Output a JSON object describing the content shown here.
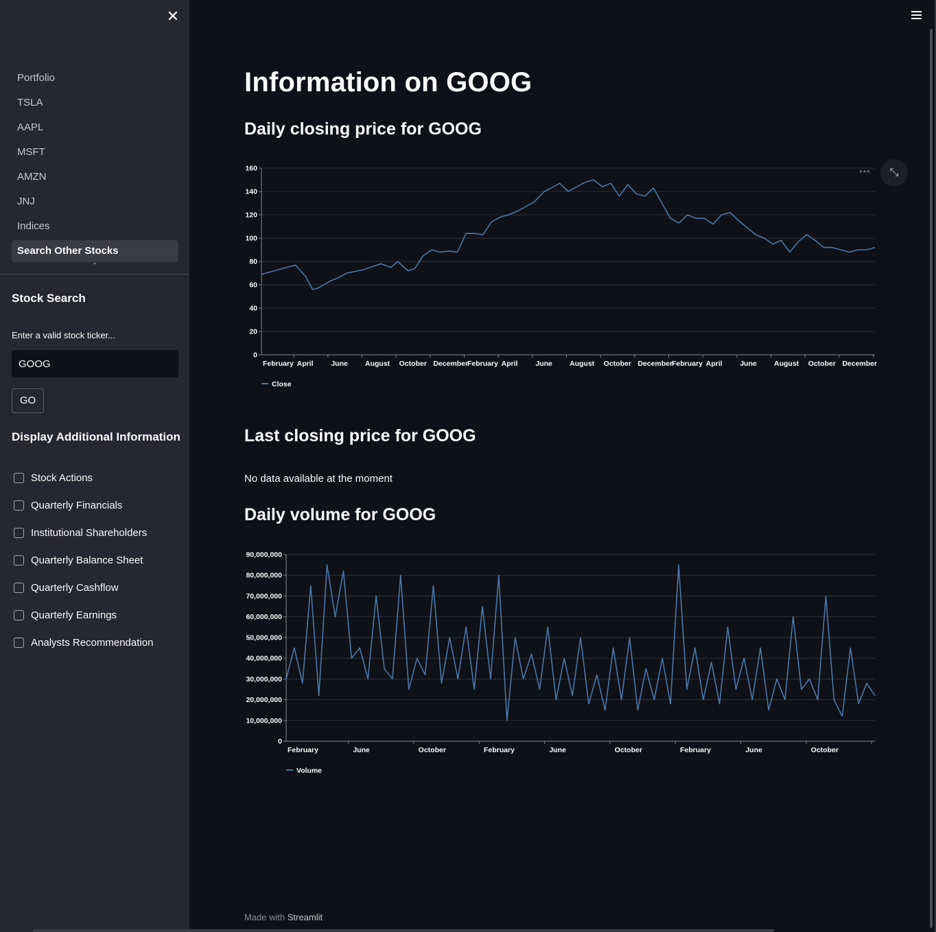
{
  "sidebar": {
    "nav_items": [
      "Portfolio",
      "TSLA",
      "AAPL",
      "MSFT",
      "AMZN",
      "JNJ",
      "Indices",
      "Search Other Stocks"
    ],
    "active_index": 7,
    "search_heading": "Stock Search",
    "input_label": "Enter a valid stock ticker...",
    "ticker_value": "GOOG",
    "go_label": "GO",
    "additional_heading": "Display Additional Information",
    "checkboxes": [
      {
        "label": "Stock Actions",
        "checked": false
      },
      {
        "label": "Quarterly Financials",
        "checked": false
      },
      {
        "label": "Institutional Shareholders",
        "checked": false
      },
      {
        "label": "Quarterly Balance Sheet",
        "checked": false
      },
      {
        "label": "Quarterly Cashflow",
        "checked": false
      },
      {
        "label": "Quarterly Earnings",
        "checked": false
      },
      {
        "label": "Analysts Recommendation",
        "checked": false
      }
    ]
  },
  "main": {
    "title": "Information on GOOG",
    "closing_heading": "Daily closing price for GOOG",
    "last_heading": "Last closing price for GOOG",
    "no_data": "No data available at the moment",
    "volume_heading": "Daily volume for GOOG",
    "footer_prefix": "Made with",
    "footer_brand": "Streamlit"
  },
  "colors": {
    "accent": "#4c78a8",
    "background": "#0e1117",
    "sidebar": "#262730"
  },
  "chart_data": [
    {
      "type": "line",
      "series": [
        {
          "name": "Close"
        }
      ],
      "ylim": [
        0,
        160
      ],
      "y_ticks": [
        0,
        20,
        40,
        60,
        80,
        100,
        120,
        140,
        160
      ],
      "x_tick_labels": [
        "February",
        "April",
        "June",
        "August",
        "October",
        "December",
        "February",
        "April",
        "June",
        "August",
        "October",
        "December",
        "February",
        "April",
        "June",
        "August",
        "October",
        "December"
      ],
      "x_index_range": [
        0,
        36
      ],
      "x_index": [
        0,
        1,
        2,
        2.6,
        3,
        3.3,
        4,
        4.5,
        5,
        6,
        7,
        7.6,
        8,
        8.6,
        9,
        9.5,
        10,
        10.5,
        11,
        11.5,
        12,
        12.5,
        13,
        13.5,
        14,
        14.5,
        15,
        15.5,
        16,
        16.6,
        17,
        17.5,
        18,
        19,
        19.5,
        20,
        20.5,
        21,
        21.5,
        22,
        22.5,
        23,
        23.5,
        24,
        24.5,
        25,
        25.5,
        26,
        26.5,
        27,
        27.5,
        28,
        28.5,
        29,
        29.5,
        30,
        30.5,
        31,
        31.5,
        32,
        32.5,
        33,
        33.5,
        34,
        34.5,
        35,
        35.5,
        36
      ],
      "values": [
        69,
        73,
        77,
        67,
        56,
        57,
        63,
        66,
        70,
        73,
        78,
        75,
        80,
        72,
        74,
        85,
        90,
        88,
        89,
        88,
        104,
        104,
        103,
        114,
        118,
        120,
        123,
        127,
        131,
        140,
        143,
        147,
        140,
        148,
        150,
        144,
        147,
        136,
        146,
        138,
        136,
        143,
        130,
        117,
        113,
        120,
        117,
        117,
        112,
        120,
        122,
        115,
        109,
        103,
        100,
        95,
        98,
        88,
        97,
        103,
        98,
        92,
        92,
        90,
        88,
        90,
        90,
        92
      ]
    },
    {
      "type": "line",
      "series": [
        {
          "name": "Volume"
        }
      ],
      "ylim": [
        0,
        90000000
      ],
      "y_ticks": [
        0,
        10000000,
        20000000,
        30000000,
        40000000,
        50000000,
        60000000,
        70000000,
        80000000,
        90000000
      ],
      "y_tick_labels": [
        "0",
        "10,000,000",
        "20,000,000",
        "30,000,000",
        "40,000,000",
        "50,000,000",
        "60,000,000",
        "70,000,000",
        "80,000,000",
        "90,000,000"
      ],
      "x_tick_labels": [
        "February",
        "June",
        "October",
        "February",
        "June",
        "October",
        "February",
        "June",
        "October"
      ],
      "x_index_range": [
        0,
        36
      ],
      "x_index": [
        0,
        0.5,
        1,
        1.5,
        2,
        2.5,
        3,
        3.5,
        4,
        4.5,
        5,
        5.5,
        6,
        6.5,
        7,
        7.5,
        8,
        8.5,
        9,
        9.5,
        10,
        10.5,
        11,
        11.5,
        12,
        12.5,
        13,
        13.5,
        14,
        14.5,
        15,
        15.5,
        16,
        16.5,
        17,
        17.5,
        18,
        18.5,
        19,
        19.5,
        20,
        20.5,
        21,
        21.5,
        22,
        22.5,
        23,
        23.5,
        24,
        24.5,
        25,
        25.5,
        26,
        26.5,
        27,
        27.5,
        28,
        28.5,
        29,
        29.5,
        30,
        30.5,
        31,
        31.5,
        32,
        32.5,
        33,
        33.5,
        34,
        34.5,
        35,
        35.5,
        36
      ],
      "values": [
        30000000,
        45000000,
        28000000,
        75000000,
        22000000,
        85000000,
        60000000,
        82000000,
        40000000,
        45000000,
        30000000,
        70000000,
        35000000,
        30000000,
        80000000,
        25000000,
        40000000,
        32000000,
        75000000,
        28000000,
        50000000,
        30000000,
        55000000,
        25000000,
        65000000,
        30000000,
        80000000,
        10000000,
        50000000,
        30000000,
        42000000,
        25000000,
        55000000,
        20000000,
        40000000,
        22000000,
        50000000,
        18000000,
        32000000,
        15000000,
        45000000,
        20000000,
        50000000,
        15000000,
        35000000,
        20000000,
        40000000,
        18000000,
        85000000,
        25000000,
        45000000,
        20000000,
        38000000,
        18000000,
        55000000,
        25000000,
        40000000,
        20000000,
        45000000,
        15000000,
        30000000,
        20000000,
        60000000,
        25000000,
        30000000,
        20000000,
        70000000,
        20000000,
        12000000,
        45000000,
        18000000,
        28000000,
        22000000
      ]
    }
  ]
}
